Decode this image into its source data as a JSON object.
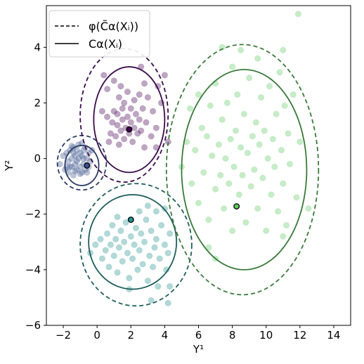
{
  "chart_data": {
    "type": "scatter",
    "xlabel": "Y¹",
    "ylabel": "Y²",
    "xlim": [
      -3,
      15
    ],
    "ylim": [
      -6,
      5.5
    ],
    "xticks": [
      -2,
      0,
      2,
      4,
      6,
      8,
      10,
      12,
      14
    ],
    "yticks": [
      -6,
      -4,
      -2,
      0,
      2,
      4
    ],
    "grid": false,
    "legend": {
      "placement": "top-left",
      "entries": [
        {
          "label": "φ(C̃α(Xᵢ))",
          "style": "dashed"
        },
        {
          "label": "Cα(Xᵢ)",
          "style": "solid"
        }
      ]
    },
    "clusters": [
      {
        "color": "#3b528b",
        "marked_point": [
          -0.6,
          -0.25
        ],
        "solid_ellipse": {
          "center": [
            -0.9,
            -0.25
          ],
          "rx": 1.0,
          "ry": 0.72
        },
        "dashed_ellipse": {
          "center": [
            -0.9,
            -0.15
          ],
          "rx": 1.45,
          "ry": 0.98
        },
        "points": [
          [
            -2.2,
            -0.2
          ],
          [
            -2.0,
            0.1
          ],
          [
            -1.9,
            -0.4
          ],
          [
            -1.8,
            0.2
          ],
          [
            -1.7,
            -0.1
          ],
          [
            -1.7,
            -0.5
          ],
          [
            -1.6,
            0.3
          ],
          [
            -1.5,
            0.0
          ],
          [
            -1.5,
            -0.3
          ],
          [
            -1.4,
            0.4
          ],
          [
            -1.4,
            -0.6
          ],
          [
            -1.3,
            0.1
          ],
          [
            -1.3,
            -0.2
          ],
          [
            -1.2,
            0.3
          ],
          [
            -1.2,
            -0.4
          ],
          [
            -1.1,
            0.0
          ],
          [
            -1.1,
            0.5
          ],
          [
            -1.0,
            -0.3
          ],
          [
            -1.0,
            0.2
          ],
          [
            -0.9,
            -0.5
          ],
          [
            -0.9,
            0.1
          ],
          [
            -0.8,
            0.3
          ],
          [
            -0.8,
            -0.2
          ],
          [
            -0.7,
            -0.4
          ],
          [
            -0.7,
            0.4
          ],
          [
            -0.6,
            0.0
          ],
          [
            -0.5,
            -0.3
          ],
          [
            -0.5,
            0.2
          ],
          [
            -0.4,
            -0.1
          ],
          [
            -0.3,
            0.3
          ],
          [
            -1.6,
            -0.3
          ],
          [
            -1.2,
            -0.1
          ],
          [
            -1.0,
            -0.55
          ],
          [
            -0.8,
            0.0
          ],
          [
            -1.4,
            0.2
          ],
          [
            -1.8,
            -0.3
          ],
          [
            -0.6,
            -0.5
          ],
          [
            -1.3,
            -0.45
          ],
          [
            -0.9,
            0.55
          ],
          [
            -1.5,
            0.45
          ]
        ]
      },
      {
        "color": "#440154",
        "marked_point": [
          1.9,
          1.05
        ],
        "solid_ellipse": {
          "center": [
            1.9,
            1.4
          ],
          "rx": 2.1,
          "ry": 1.9
        },
        "dashed_ellipse": {
          "center": [
            1.6,
            1.55
          ],
          "rx": 2.6,
          "ry": 2.4
        },
        "points": [
          [
            0.3,
            1.7
          ],
          [
            0.4,
            3.0
          ],
          [
            0.6,
            2.5
          ],
          [
            0.6,
            1.5
          ],
          [
            0.7,
            0.6
          ],
          [
            0.8,
            0.9
          ],
          [
            0.9,
            1.3
          ],
          [
            1.0,
            1.7
          ],
          [
            1.0,
            2.8
          ],
          [
            1.1,
            0.8
          ],
          [
            1.2,
            1.2
          ],
          [
            1.2,
            1.6
          ],
          [
            1.3,
            0.5
          ],
          [
            1.3,
            2.2
          ],
          [
            1.4,
            1.0
          ],
          [
            1.5,
            1.4
          ],
          [
            1.5,
            1.8
          ],
          [
            1.6,
            0.7
          ],
          [
            1.6,
            2.0
          ],
          [
            1.7,
            1.1
          ],
          [
            1.8,
            1.5
          ],
          [
            1.8,
            2.4
          ],
          [
            1.9,
            0.9
          ],
          [
            2.0,
            1.3
          ],
          [
            2.0,
            1.8
          ],
          [
            2.1,
            0.6
          ],
          [
            2.2,
            1.1
          ],
          [
            2.2,
            2.1
          ],
          [
            2.3,
            1.6
          ],
          [
            2.4,
            0.9
          ],
          [
            2.5,
            1.4
          ],
          [
            2.5,
            2.3
          ],
          [
            2.6,
            1.0
          ],
          [
            2.7,
            1.8
          ],
          [
            2.8,
            0.4
          ],
          [
            2.9,
            1.3
          ],
          [
            3.0,
            2.2
          ],
          [
            3.2,
            0.8
          ],
          [
            3.3,
            1.7
          ],
          [
            3.5,
            1.1
          ],
          [
            3.6,
            2.6
          ],
          [
            3.8,
            2.0
          ],
          [
            3.5,
            0.4
          ],
          [
            2.8,
            2.7
          ],
          [
            1.4,
            2.6
          ],
          [
            4.0,
            3.0
          ],
          [
            4.2,
            0.6
          ],
          [
            2.6,
            3.3
          ]
        ]
      },
      {
        "color": "#21918c",
        "marked_point": [
          2.0,
          -2.2
        ],
        "solid_ellipse": {
          "center": [
            2.1,
            -3.0
          ],
          "rx": 2.6,
          "ry": 1.7
        },
        "dashed_ellipse": {
          "center": [
            2.3,
            -3.1
          ],
          "rx": 3.3,
          "ry": 2.2
        },
        "points": [
          [
            -0.4,
            -3.4
          ],
          [
            -0.1,
            -3.1
          ],
          [
            0.2,
            -2.9
          ],
          [
            0.3,
            -3.6
          ],
          [
            0.5,
            -3.3
          ],
          [
            0.6,
            -2.7
          ],
          [
            0.7,
            -3.9
          ],
          [
            0.8,
            -3.1
          ],
          [
            0.9,
            -2.4
          ],
          [
            1.0,
            -3.5
          ],
          [
            1.1,
            -2.9
          ],
          [
            1.2,
            -4.1
          ],
          [
            1.3,
            -3.2
          ],
          [
            1.4,
            -2.6
          ],
          [
            1.5,
            -3.7
          ],
          [
            1.6,
            -3.0
          ],
          [
            1.7,
            -2.3
          ],
          [
            1.8,
            -3.4
          ],
          [
            1.9,
            -4.3
          ],
          [
            2.0,
            -2.8
          ],
          [
            2.1,
            -3.6
          ],
          [
            2.2,
            -3.1
          ],
          [
            2.3,
            -2.5
          ],
          [
            2.4,
            -4.0
          ],
          [
            2.5,
            -3.3
          ],
          [
            2.6,
            -2.7
          ],
          [
            2.7,
            -3.8
          ],
          [
            2.8,
            -3.0
          ],
          [
            2.9,
            -2.2
          ],
          [
            3.0,
            -4.4
          ],
          [
            3.1,
            -3.5
          ],
          [
            3.2,
            -2.6
          ],
          [
            3.3,
            -3.9
          ],
          [
            3.4,
            -3.2
          ],
          [
            3.5,
            -2.9
          ],
          [
            3.6,
            -4.6
          ],
          [
            3.7,
            -3.6
          ],
          [
            3.8,
            -2.4
          ],
          [
            4.0,
            -3.1
          ],
          [
            4.1,
            -4.0
          ],
          [
            4.2,
            -3.4
          ],
          [
            4.3,
            -2.7
          ],
          [
            4.0,
            -1.8
          ],
          [
            3.5,
            -1.9
          ],
          [
            3.0,
            -1.7
          ],
          [
            2.5,
            -1.9
          ],
          [
            1.2,
            -2.1
          ],
          [
            3.2,
            -5.1
          ],
          [
            1.9,
            -4.7
          ],
          [
            4.3,
            -4.6
          ],
          [
            4.2,
            -5.2
          ]
        ]
      },
      {
        "color": "#5ec962",
        "marked_point": [
          8.25,
          -1.72
        ],
        "solid_ellipse": {
          "center": [
            8.7,
            -0.4
          ],
          "rx": 3.7,
          "ry": 3.6
        },
        "dashed_ellipse": {
          "center": [
            8.6,
            -0.4
          ],
          "rx": 4.5,
          "ry": 4.5
        },
        "points": [
          [
            5.0,
            -0.3
          ],
          [
            5.3,
            0.6
          ],
          [
            5.5,
            1.8
          ],
          [
            5.6,
            -0.9
          ],
          [
            5.8,
            0.3
          ],
          [
            6.0,
            2.3
          ],
          [
            6.0,
            -1.6
          ],
          [
            6.2,
            1.1
          ],
          [
            6.3,
            -0.5
          ],
          [
            6.5,
            0.8
          ],
          [
            6.6,
            -2.2
          ],
          [
            6.7,
            1.9
          ],
          [
            6.8,
            0.1
          ],
          [
            7.0,
            -1.1
          ],
          [
            7.0,
            2.7
          ],
          [
            7.2,
            0.5
          ],
          [
            7.3,
            -0.6
          ],
          [
            7.4,
            1.4
          ],
          [
            7.5,
            -1.8
          ],
          [
            7.6,
            0.0
          ],
          [
            7.7,
            2.0
          ],
          [
            7.8,
            -0.9
          ],
          [
            7.9,
            0.7
          ],
          [
            8.0,
            3.3
          ],
          [
            8.0,
            -2.6
          ],
          [
            8.1,
            -0.3
          ],
          [
            8.2,
            1.0
          ],
          [
            8.3,
            2.3
          ],
          [
            8.4,
            -1.3
          ],
          [
            8.5,
            0.4
          ],
          [
            8.6,
            -0.6
          ],
          [
            8.7,
            1.6
          ],
          [
            8.8,
            -2.3
          ],
          [
            8.9,
            0.2
          ],
          [
            9.0,
            2.9
          ],
          [
            9.1,
            -1.0
          ],
          [
            9.2,
            0.8
          ],
          [
            9.3,
            -0.4
          ],
          [
            9.4,
            1.3
          ],
          [
            9.5,
            -1.8
          ],
          [
            9.6,
            0.5
          ],
          [
            9.7,
            2.2
          ],
          [
            9.8,
            -0.7
          ],
          [
            9.9,
            1.0
          ],
          [
            10.0,
            -2.6
          ],
          [
            10.1,
            0.0
          ],
          [
            10.2,
            2.6
          ],
          [
            10.3,
            -1.3
          ],
          [
            10.4,
            0.7
          ],
          [
            10.5,
            -0.3
          ],
          [
            10.6,
            1.6
          ],
          [
            10.7,
            -1.9
          ],
          [
            10.8,
            3.1
          ],
          [
            10.9,
            0.3
          ],
          [
            11.0,
            -0.9
          ],
          [
            11.1,
            1.9
          ],
          [
            11.2,
            -2.4
          ],
          [
            11.3,
            0.9
          ],
          [
            11.4,
            -0.2
          ],
          [
            11.6,
            2.3
          ],
          [
            11.8,
            -1.4
          ],
          [
            12.0,
            0.6
          ],
          [
            12.5,
            -1.8
          ],
          [
            11.9,
            5.2
          ],
          [
            11.0,
            3.9
          ],
          [
            6.6,
            -3.2
          ],
          [
            7.0,
            -3.6
          ],
          [
            11.0,
            -2.8
          ],
          [
            7.4,
            4.0
          ],
          [
            9.5,
            3.6
          ],
          [
            8.5,
            3.9
          ]
        ]
      }
    ]
  }
}
